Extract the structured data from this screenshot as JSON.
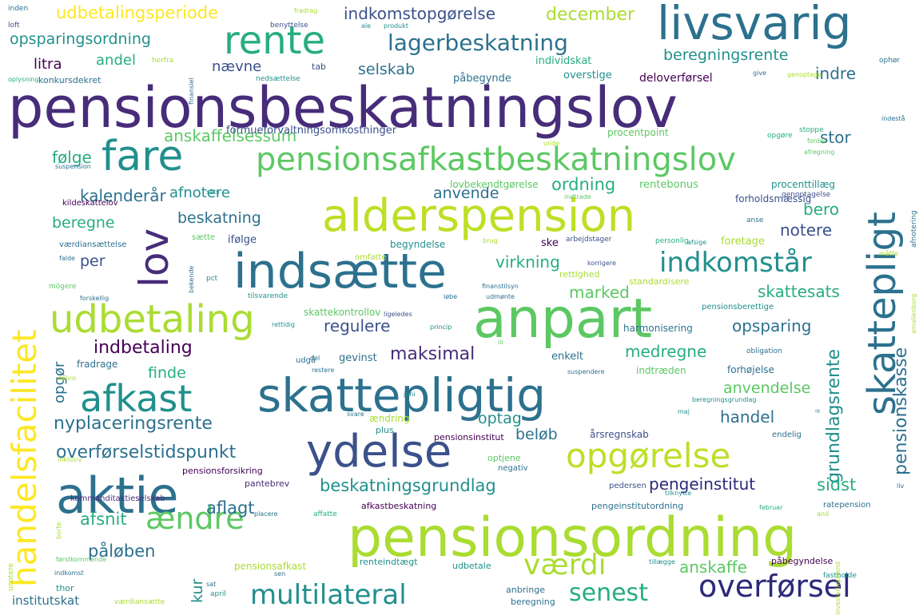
{
  "colors": {
    "background": "#ffffff",
    "c0": "#440154",
    "c1": "#472c7a",
    "c2": "#3b518b",
    "c3": "#2c718e",
    "c4": "#21908d",
    "c5": "#27ad81",
    "c6": "#5cc863",
    "c7": "#aadc32",
    "c8": "#fde725"
  },
  "words": [
    {
      "text": "pensionsbeskatningslov"
    },
    {
      "text": "pensionsordning"
    },
    {
      "text": "alderspension"
    },
    {
      "text": "skattepligtig"
    },
    {
      "text": "anpart"
    },
    {
      "text": "indsætte"
    },
    {
      "text": "aktie"
    },
    {
      "text": "ydelse"
    },
    {
      "text": "livsvarig"
    },
    {
      "text": "rente"
    },
    {
      "text": "handelsfacilitet"
    },
    {
      "text": "skattepligt"
    },
    {
      "text": "fare"
    },
    {
      "text": "pensionsafkastbeskatningslov"
    },
    {
      "text": "udbetaling"
    },
    {
      "text": "afkast"
    },
    {
      "text": "opgørelse"
    },
    {
      "text": "indkomstår"
    },
    {
      "text": "lov"
    },
    {
      "text": "multilateral"
    },
    {
      "text": "ændre"
    },
    {
      "text": "overførsel"
    },
    {
      "text": "værdi"
    },
    {
      "text": "senest"
    },
    {
      "text": "lagerbeskatning"
    },
    {
      "text": "udbetalingsperiode"
    },
    {
      "text": "indkomstopgørelse"
    },
    {
      "text": "december"
    },
    {
      "text": "opsparingsordning"
    },
    {
      "text": "andel"
    },
    {
      "text": "litra"
    },
    {
      "text": "nævne"
    },
    {
      "text": "selskab"
    },
    {
      "text": "beregningsrente"
    },
    {
      "text": "indre"
    },
    {
      "text": "anskaffelsessum"
    },
    {
      "text": "følge"
    },
    {
      "text": "stor"
    },
    {
      "text": "kalenderår"
    },
    {
      "text": "afnotere"
    },
    {
      "text": "anvende"
    },
    {
      "text": "ordning"
    },
    {
      "text": "beregne"
    },
    {
      "text": "beskatning"
    },
    {
      "text": "bero"
    },
    {
      "text": "notere"
    },
    {
      "text": "per"
    },
    {
      "text": "virkning"
    },
    {
      "text": "marked"
    },
    {
      "text": "skattesats"
    },
    {
      "text": "regulere"
    },
    {
      "text": "opsparing"
    },
    {
      "text": "indbetaling"
    },
    {
      "text": "maksimal"
    },
    {
      "text": "medregne"
    },
    {
      "text": "finde"
    },
    {
      "text": "opgør"
    },
    {
      "text": "anvendelse"
    },
    {
      "text": "nyplaceringsrente"
    },
    {
      "text": "optag"
    },
    {
      "text": "handel"
    },
    {
      "text": "overførselstidspunkt"
    },
    {
      "text": "beløb"
    },
    {
      "text": "grundlagsrente"
    },
    {
      "text": "pensionskasse"
    },
    {
      "text": "beskatningsgrundlag"
    },
    {
      "text": "pengeinstitut"
    },
    {
      "text": "sidst"
    },
    {
      "text": "aflagt"
    },
    {
      "text": "afsnit"
    },
    {
      "text": "påløben"
    },
    {
      "text": "kur"
    },
    {
      "text": "anskaffe"
    },
    {
      "text": "institutskat"
    },
    {
      "text": "formueforvaltningsomkostninger"
    },
    {
      "text": "procentpoint"
    },
    {
      "text": "deloverførsel"
    },
    {
      "text": "individskat"
    },
    {
      "text": "overstige"
    },
    {
      "text": "påbegynde"
    },
    {
      "text": "konkursdekret"
    },
    {
      "text": "herfra"
    },
    {
      "text": "tab"
    },
    {
      "text": "nedsættelse"
    },
    {
      "text": "lovbekendtgørelse"
    },
    {
      "text": "rentebonus"
    },
    {
      "text": "procenttillæg"
    },
    {
      "text": "forholdsmæssig"
    },
    {
      "text": "genoptagelse"
    },
    {
      "text": "kildeskattelov"
    },
    {
      "text": "værdiansættelse"
    },
    {
      "text": "sætte"
    },
    {
      "text": "ifølge"
    },
    {
      "text": "begyndelse"
    },
    {
      "text": "ske"
    },
    {
      "text": "foretage"
    },
    {
      "text": "arbejdstager"
    },
    {
      "text": "personlig"
    },
    {
      "text": "omfatte"
    },
    {
      "text": "rettighed"
    },
    {
      "text": "standardisere"
    },
    {
      "text": "pensionsberettige"
    },
    {
      "text": "skattekontrollov"
    },
    {
      "text": "tilsvarende"
    },
    {
      "text": "harmonisering"
    },
    {
      "text": "obligation"
    },
    {
      "text": "gevinst"
    },
    {
      "text": "enkelt"
    },
    {
      "text": "fradrage"
    },
    {
      "text": "udgå"
    },
    {
      "text": "indtræden"
    },
    {
      "text": "forhøjelse"
    },
    {
      "text": "ændring"
    },
    {
      "text": "plus"
    },
    {
      "text": "pensionsinstitut"
    },
    {
      "text": "årsregnskab"
    },
    {
      "text": "endelig"
    },
    {
      "text": "optjene"
    },
    {
      "text": "negativ"
    },
    {
      "text": "pensionsforsikring"
    },
    {
      "text": "pantebrev"
    },
    {
      "text": "pedersen"
    },
    {
      "text": "kommanditaktieselskab"
    },
    {
      "text": "afkastbeskatning"
    },
    {
      "text": "pengeinstitutordning"
    },
    {
      "text": "ratepension"
    },
    {
      "text": "pensionsafkast"
    },
    {
      "text": "renteindtægt"
    },
    {
      "text": "udbetale"
    },
    {
      "text": "anbringe"
    },
    {
      "text": "beregning"
    },
    {
      "text": "værdiansætte"
    },
    {
      "text": "april"
    },
    {
      "text": "thor"
    },
    {
      "text": "påbegyndelse"
    },
    {
      "text": "fastholde"
    },
    {
      "text": "investeringsfond"
    },
    {
      "text": "inden"
    },
    {
      "text": "benyttelse"
    },
    {
      "text": "fradrag"
    },
    {
      "text": "ale"
    },
    {
      "text": "produkt"
    },
    {
      "text": "loft"
    },
    {
      "text": "oplysning"
    },
    {
      "text": "finansiel"
    },
    {
      "text": "ophør"
    },
    {
      "text": "genoptage"
    },
    {
      "text": "give"
    },
    {
      "text": "indestå"
    },
    {
      "text": "stoppe"
    },
    {
      "text": "opgøre"
    },
    {
      "text": "fordel"
    },
    {
      "text": "afregning"
    },
    {
      "text": "suspension"
    },
    {
      "text": "sats"
    },
    {
      "text": "indtrade"
    },
    {
      "text": "afnotering"
    },
    {
      "text": "anse"
    },
    {
      "text": "brug"
    },
    {
      "text": "afsige"
    },
    {
      "text": "måtte"
    },
    {
      "text": "korrigere"
    },
    {
      "text": "falde"
    },
    {
      "text": "pct"
    },
    {
      "text": "bekende"
    },
    {
      "text": "mögere"
    },
    {
      "text": "forskellig"
    },
    {
      "text": "finanstilsyn"
    },
    {
      "text": "udmønte"
    },
    {
      "text": "løbe"
    },
    {
      "text": "ligeledes"
    },
    {
      "text": "rettidig"
    },
    {
      "text": "princip"
    },
    {
      "text": "del"
    },
    {
      "text": "restere"
    },
    {
      "text": "suspendere"
    },
    {
      "text": "delvis"
    },
    {
      "text": "juni"
    },
    {
      "text": "svare"
    },
    {
      "text": "beregningsgrundlag"
    },
    {
      "text": "maj"
    },
    {
      "text": "inklusiv"
    },
    {
      "text": "tilknytte"
    },
    {
      "text": "februar"
    },
    {
      "text": "and"
    },
    {
      "text": "placere"
    },
    {
      "text": "affatte"
    },
    {
      "text": "borte"
    },
    {
      "text": "unotere"
    },
    {
      "text": "førstkommende"
    },
    {
      "text": "indkomst"
    },
    {
      "text": "sen"
    },
    {
      "text": "tillægge"
    },
    {
      "text": "sat"
    },
    {
      "text": "liv"
    },
    {
      "text": "ii"
    },
    {
      "text": "iii"
    },
    {
      "text": "unde"
    },
    {
      "text": "amalienborg"
    }
  ]
}
